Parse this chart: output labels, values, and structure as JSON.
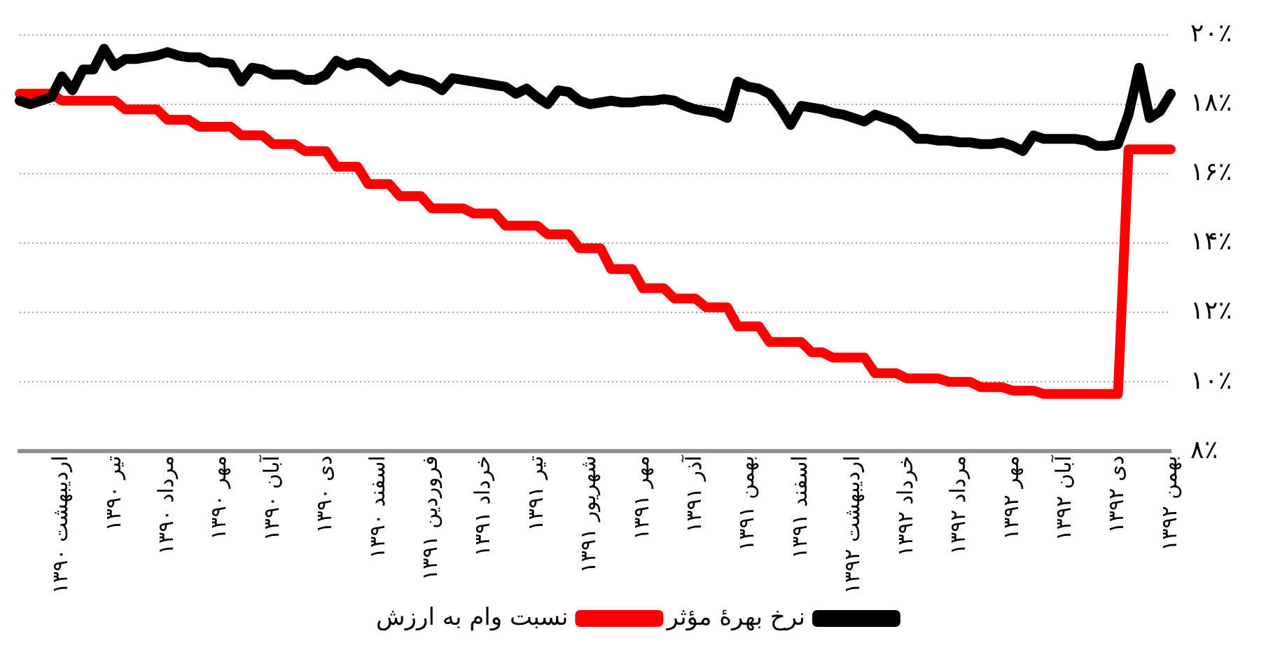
{
  "chart_data": {
    "type": "line",
    "categories": [
      null,
      null,
      null,
      null,
      "اردیبهشت ۱۳۹۰",
      null,
      null,
      null,
      null,
      "تیر ۱۳۹۰",
      null,
      null,
      null,
      null,
      "مرداد ۱۳۹۰",
      null,
      null,
      null,
      null,
      "مهر ۱۳۹۰",
      null,
      null,
      null,
      null,
      "آبان ۱۳۹۰",
      null,
      null,
      null,
      null,
      "دی ۱۳۹۰",
      null,
      null,
      null,
      null,
      "اسفند ۱۳۹۰",
      null,
      null,
      null,
      null,
      "فروردین ۱۳۹۱",
      null,
      null,
      null,
      null,
      "خرداد ۱۳۹۱",
      null,
      null,
      null,
      null,
      "تیر ۱۳۹۱",
      null,
      null,
      null,
      null,
      "شهریور ۱۳۹۱",
      null,
      null,
      null,
      null,
      "مهر ۱۳۹۱",
      null,
      null,
      null,
      null,
      "آذر ۱۳۹۱",
      null,
      null,
      null,
      null,
      "بهمن ۱۳۹۱",
      null,
      null,
      null,
      null,
      "اسفند ۱۳۹۱",
      null,
      null,
      null,
      null,
      "اردیبهشت ۱۳۹۲",
      null,
      null,
      null,
      null,
      "خرداد ۱۳۹۲",
      null,
      null,
      null,
      null,
      "مرداد ۱۳۹۲",
      null,
      null,
      null,
      null,
      "مهر ۱۳۹۲",
      null,
      null,
      null,
      null,
      "آبان ۱۳۹۲",
      null,
      null,
      null,
      null,
      "دی ۱۳۹۲",
      null,
      null,
      null,
      null,
      "بهمن ۱۳۹۲"
    ],
    "series": [
      {
        "name": "نرخ بهرهٔ مؤثر",
        "color": "#000000",
        "values": [
          18.1,
          18.0,
          18.1,
          18.2,
          18.8,
          18.4,
          19.0,
          19.0,
          19.6,
          19.1,
          19.3,
          19.3,
          19.35,
          19.4,
          19.5,
          19.4,
          19.35,
          19.35,
          19.2,
          19.2,
          19.15,
          18.65,
          19.05,
          19.0,
          18.85,
          18.85,
          18.85,
          18.7,
          18.7,
          18.85,
          19.25,
          19.1,
          19.2,
          19.15,
          18.9,
          18.65,
          18.85,
          18.75,
          18.7,
          18.6,
          18.4,
          18.75,
          18.7,
          18.65,
          18.6,
          18.55,
          18.5,
          18.3,
          18.45,
          18.2,
          18.0,
          18.4,
          18.35,
          18.1,
          18.0,
          18.05,
          18.1,
          18.05,
          18.05,
          18.1,
          18.1,
          18.15,
          18.1,
          17.95,
          17.85,
          17.8,
          17.75,
          17.6,
          18.65,
          18.5,
          18.45,
          18.3,
          17.9,
          17.4,
          17.95,
          17.9,
          17.85,
          17.75,
          17.7,
          17.6,
          17.5,
          17.7,
          17.6,
          17.5,
          17.3,
          17.0,
          17.0,
          16.95,
          16.95,
          16.9,
          16.9,
          16.85,
          16.85,
          16.9,
          16.8,
          16.65,
          17.1,
          17.0,
          17.0,
          17.0,
          17.0,
          16.95,
          16.8,
          16.8,
          16.85,
          17.7,
          19.05,
          17.6,
          17.8,
          18.3
        ]
      },
      {
        "name": "نسبت وام به ارزش",
        "color": "#ff0000",
        "values": [
          18.3,
          18.3,
          18.3,
          18.3,
          18.1,
          18.1,
          18.1,
          18.1,
          18.1,
          18.1,
          17.85,
          17.85,
          17.85,
          17.85,
          17.55,
          17.55,
          17.55,
          17.35,
          17.35,
          17.35,
          17.35,
          17.1,
          17.1,
          17.1,
          16.85,
          16.85,
          16.85,
          16.65,
          16.65,
          16.65,
          16.2,
          16.2,
          16.2,
          15.7,
          15.7,
          15.7,
          15.35,
          15.35,
          15.35,
          15.0,
          15.0,
          15.0,
          15.0,
          14.85,
          14.85,
          14.85,
          14.5,
          14.5,
          14.5,
          14.5,
          14.25,
          14.25,
          14.25,
          13.85,
          13.85,
          13.85,
          13.25,
          13.25,
          13.25,
          12.7,
          12.7,
          12.7,
          12.4,
          12.4,
          12.4,
          12.15,
          12.15,
          12.15,
          11.6,
          11.6,
          11.6,
          11.15,
          11.15,
          11.15,
          11.15,
          10.85,
          10.85,
          10.7,
          10.7,
          10.7,
          10.7,
          10.25,
          10.25,
          10.25,
          10.1,
          10.1,
          10.1,
          10.1,
          10.0,
          10.0,
          10.0,
          9.85,
          9.85,
          9.85,
          9.75,
          9.75,
          9.75,
          9.65,
          9.65,
          9.65,
          9.65,
          9.65,
          9.65,
          9.65,
          9.65,
          16.7,
          16.7,
          16.7,
          16.7,
          16.7
        ]
      }
    ],
    "ylim": [
      8,
      20
    ],
    "yticks": [
      {
        "value": 8,
        "label": "۸٪"
      },
      {
        "value": 10,
        "label": "۱۰٪"
      },
      {
        "value": 12,
        "label": "۱۲٪"
      },
      {
        "value": 14,
        "label": "۱۴٪"
      },
      {
        "value": 16,
        "label": "۱۶٪"
      },
      {
        "value": 18,
        "label": "۱۸٪"
      },
      {
        "value": 20,
        "label": "۲۰٪"
      }
    ],
    "grid": "y",
    "legend": "bottom",
    "marker": "none",
    "line_style": "solid"
  }
}
